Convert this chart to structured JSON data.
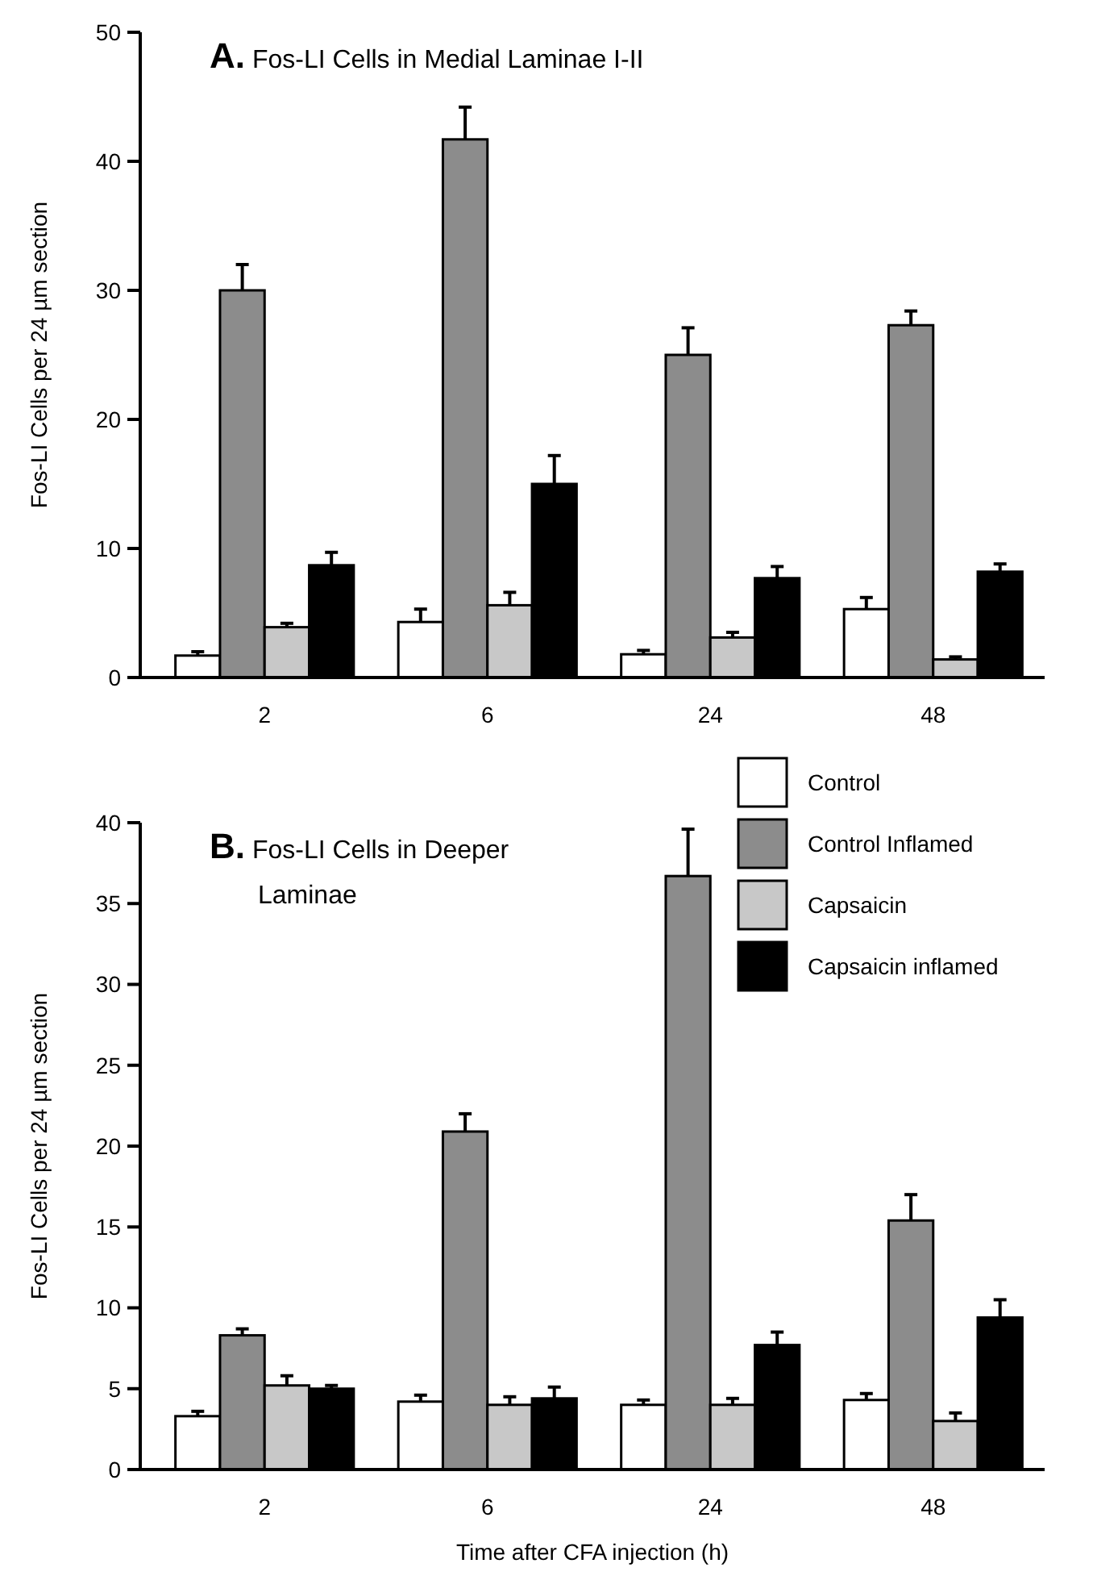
{
  "chart_data": [
    {
      "type": "bar",
      "title": "A. Fos-LI Cells in Medial Laminae I-II",
      "ylabel": "Fos-LI Cells per 24 µm section",
      "categories": [
        "2",
        "6",
        "24",
        "48"
      ],
      "ylim": [
        0,
        50
      ],
      "yticks": [
        0,
        10,
        20,
        30,
        40,
        50
      ],
      "legend": false,
      "grid": false,
      "series": [
        {
          "color": "#ffffff",
          "values": [
            1.7,
            4.3,
            1.8,
            5.3
          ],
          "errors": [
            [
              1.7,
              2.0
            ],
            [
              4.3,
              5.3
            ],
            [
              1.8,
              2.1
            ],
            [
              5.3,
              6.2
            ]
          ]
        },
        {
          "color": "#8c8c8c",
          "values": [
            30,
            41.7,
            25,
            27.3
          ],
          "errors": [
            [
              30,
              32
            ],
            [
              41.7,
              44.2
            ],
            [
              25,
              27.1
            ],
            [
              27.3,
              28.4
            ]
          ]
        },
        {
          "color": "#c8c8c8",
          "values": [
            3.9,
            5.6,
            3.1,
            1.4
          ],
          "errors": [
            [
              3.9,
              4.2
            ],
            [
              5.6,
              6.6
            ],
            [
              3.1,
              3.5
            ],
            [
              1.4,
              1.6
            ]
          ]
        },
        {
          "color": "#000000",
          "values": [
            8.7,
            15,
            7.7,
            8.2
          ],
          "errors": [
            [
              8.7,
              9.7
            ],
            [
              15,
              17.2
            ],
            [
              7.7,
              8.6
            ],
            [
              8.2,
              8.8
            ]
          ]
        }
      ]
    },
    {
      "type": "bar",
      "title": "B. Fos-LI Cells in Deeper Laminae",
      "ylabel": "Fos-LI Cells per 24 µm section",
      "xlabel": "Time after CFA injection (h)",
      "categories": [
        "2",
        "6",
        "24",
        "48"
      ],
      "ylim": [
        0,
        40
      ],
      "yticks": [
        0,
        5,
        10,
        15,
        20,
        25,
        30,
        35,
        40
      ],
      "legend": "top right",
      "grid": false,
      "series": [
        {
          "name": "Control",
          "color": "#ffffff",
          "values": [
            3.3,
            4.2,
            4.0,
            4.3
          ],
          "errors": [
            [
              3.3,
              3.6
            ],
            [
              4.2,
              4.6
            ],
            [
              4.0,
              4.3
            ],
            [
              4.3,
              4.7
            ]
          ]
        },
        {
          "name": "Control Inflamed",
          "color": "#8c8c8c",
          "values": [
            8.3,
            20.9,
            36.7,
            15.4
          ],
          "errors": [
            [
              8.3,
              8.7
            ],
            [
              20.9,
              22
            ],
            [
              36.7,
              39.6
            ],
            [
              15.4,
              17
            ]
          ]
        },
        {
          "name": "Capsaicin",
          "color": "#c8c8c8",
          "values": [
            5.2,
            4.0,
            4.0,
            3.0
          ],
          "errors": [
            [
              5.2,
              5.8
            ],
            [
              4.0,
              4.5
            ],
            [
              4.0,
              4.4
            ],
            [
              3.0,
              3.5
            ]
          ]
        },
        {
          "name": "Capsaicin inflamed",
          "color": "#000000",
          "values": [
            5.0,
            4.4,
            7.7,
            9.4
          ],
          "errors": [
            [
              5.0,
              5.2
            ],
            [
              4.4,
              5.1
            ],
            [
              7.7,
              8.5
            ],
            [
              9.4,
              10.5
            ]
          ]
        }
      ]
    }
  ]
}
